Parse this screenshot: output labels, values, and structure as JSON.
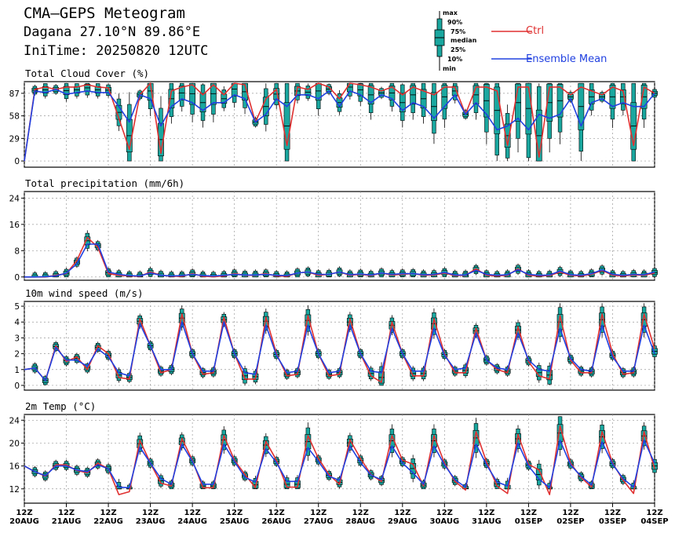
{
  "header": {
    "title": "CMA—GEPS Meteogram",
    "location": "Dagana 27.10°N 89.86°E",
    "init": "IniTime: 20250820 12UTC"
  },
  "legend": {
    "box_labels": [
      "max",
      "90%",
      "75%",
      "median",
      "25%",
      "10%",
      "min"
    ],
    "ctrl_label": "Ctrl",
    "mean_label": "Ensemble Mean",
    "ctrl_color": "#e03030",
    "mean_color": "#2040e0",
    "box_color": "#1aa7a0"
  },
  "chart_data": [
    {
      "type": "line",
      "title": "Total Cloud Cover (%)",
      "yticks": [
        0,
        29,
        58,
        87
      ],
      "ylim": [
        -8,
        102
      ],
      "x": [
        "20AUG12",
        "20AUG18",
        "21AUG00",
        "21AUG06",
        "21AUG12",
        "21AUG18",
        "22AUG00",
        "22AUG06",
        "22AUG12",
        "22AUG18",
        "23AUG00",
        "23AUG06",
        "23AUG12",
        "23AUG18",
        "24AUG00",
        "24AUG06",
        "24AUG12",
        "24AUG18",
        "25AUG00",
        "25AUG06",
        "25AUG12",
        "25AUG18",
        "26AUG00",
        "26AUG06",
        "26AUG12",
        "26AUG18",
        "27AUG00",
        "27AUG06",
        "27AUG12",
        "27AUG18",
        "28AUG00",
        "28AUG06",
        "28AUG12",
        "28AUG18",
        "29AUG00",
        "29AUG06",
        "29AUG12",
        "29AUG18",
        "30AUG00",
        "30AUG06",
        "30AUG12",
        "30AUG18",
        "31AUG00",
        "31AUG06",
        "31AUG12",
        "31AUG18",
        "01SEP00",
        "01SEP06",
        "01SEP12",
        "01SEP18",
        "02SEP00",
        "02SEP06",
        "02SEP12",
        "02SEP18",
        "03SEP00",
        "03SEP06",
        "03SEP12",
        "03SEP18",
        "04SEP00",
        "04SEP06",
        "04SEP12"
      ],
      "series": [
        {
          "name": "Ctrl",
          "values": [
            0,
            92,
            95,
            92,
            95,
            95,
            98,
            95,
            94,
            55,
            15,
            85,
            100,
            10,
            90,
            95,
            98,
            85,
            98,
            85,
            100,
            98,
            50,
            80,
            92,
            20,
            95,
            92,
            100,
            95,
            80,
            100,
            98,
            95,
            90,
            95,
            85,
            95,
            90,
            85,
            95,
            95,
            60,
            95,
            95,
            90,
            20,
            95,
            95,
            5,
            95,
            95,
            85,
            95,
            90,
            85,
            95,
            90,
            20,
            95,
            87
          ]
        },
        {
          "name": "Ensemble Mean",
          "values": [
            0,
            90,
            88,
            92,
            86,
            88,
            90,
            88,
            88,
            70,
            50,
            85,
            80,
            45,
            70,
            80,
            75,
            65,
            75,
            75,
            85,
            80,
            50,
            60,
            80,
            70,
            85,
            85,
            80,
            90,
            70,
            90,
            85,
            75,
            85,
            80,
            65,
            75,
            70,
            55,
            70,
            85,
            60,
            75,
            60,
            40,
            45,
            55,
            40,
            60,
            55,
            60,
            80,
            45,
            75,
            80,
            70,
            75,
            70,
            70,
            87
          ]
        }
      ]
    },
    {
      "type": "line",
      "title": "Total precipitation (mm/6h)",
      "yticks": [
        0,
        8,
        16,
        24
      ],
      "ylim": [
        -1,
        26
      ],
      "series": [
        {
          "name": "Ctrl",
          "values": [
            0,
            0,
            0,
            0.5,
            1,
            5,
            12,
            9,
            1,
            0.5,
            0.3,
            0.2,
            1.5,
            0.5,
            0.2,
            0.2,
            1,
            0.2,
            0.1,
            0.3,
            1,
            0.5,
            0.5,
            1,
            0.3,
            0.2,
            1.2,
            1.5,
            0.5,
            0.8,
            1.5,
            0.5,
            0.8,
            0.4,
            1.2,
            0.6,
            0.8,
            1,
            0.5,
            0.6,
            1.2,
            0.4,
            0.5,
            2.5,
            0.5,
            0.3,
            0.5,
            2.5,
            0.5,
            0.3,
            0.4,
            1.5,
            0.5,
            0.3,
            0.8,
            2,
            0.5,
            0.3,
            0.6,
            0.5,
            1.2
          ]
        },
        {
          "name": "Ensemble Mean",
          "values": [
            0,
            0,
            0.1,
            0.3,
            1.2,
            4,
            10,
            10,
            1.5,
            0.8,
            0.4,
            0.3,
            1.2,
            0.5,
            0.3,
            0.4,
            0.8,
            0.4,
            0.3,
            0.5,
            0.8,
            0.6,
            0.6,
            0.8,
            0.5,
            0.4,
            1.2,
            1.5,
            0.8,
            0.8,
            1.5,
            0.7,
            0.9,
            0.6,
            1.2,
            0.8,
            1,
            1,
            0.7,
            0.8,
            1.4,
            0.6,
            0.6,
            2,
            0.8,
            0.5,
            0.7,
            2.2,
            0.8,
            0.5,
            0.6,
            1.8,
            0.7,
            0.5,
            1,
            2.2,
            0.8,
            0.5,
            0.8,
            0.7,
            1.5
          ]
        }
      ]
    },
    {
      "type": "line",
      "title": "10m wind speed (m/s)",
      "yticks": [
        0,
        1,
        2,
        3,
        4,
        5
      ],
      "ylim": [
        -0.3,
        5.3
      ],
      "series": [
        {
          "name": "Ctrl",
          "values": [
            1,
            1.1,
            0.3,
            2.5,
            1.5,
            1.8,
            1,
            2.5,
            2,
            0.5,
            0.4,
            4.2,
            2.5,
            0.8,
            1,
            4.5,
            2,
            0.7,
            0.8,
            4.3,
            2,
            0.4,
            0.4,
            4.3,
            2,
            0.6,
            0.7,
            4.4,
            2,
            0.6,
            0.7,
            4.2,
            2,
            0.6,
            0.2,
            4,
            2,
            0.6,
            0.6,
            4.2,
            2,
            0.8,
            0.8,
            3.6,
            1.6,
            1,
            0.8,
            3.7,
            1.5,
            0.6,
            0.4,
            4.4,
            1.6,
            0.8,
            0.8,
            4.5,
            2,
            0.7,
            0.8,
            4.5,
            2.3
          ]
        },
        {
          "name": "Ensemble Mean",
          "values": [
            1,
            1.1,
            0.3,
            2.4,
            1.6,
            1.6,
            1.2,
            2.3,
            1.8,
            0.8,
            0.6,
            3.9,
            2.5,
            1,
            1,
            4,
            2,
            0.9,
            0.9,
            4,
            2,
            0.8,
            0.7,
            3.8,
            1.9,
            0.8,
            0.9,
            3.8,
            2,
            0.8,
            0.9,
            3.8,
            2,
            0.9,
            0.8,
            3.6,
            2,
            0.9,
            0.9,
            3.6,
            1.9,
            1,
            1.1,
            3.3,
            1.6,
            1.1,
            1,
            3.3,
            1.6,
            1,
            0.9,
            3.6,
            1.7,
            1,
            0.9,
            3.8,
            1.8,
            0.9,
            0.9,
            3.8,
            2
          ]
        }
      ]
    },
    {
      "type": "line",
      "title": "2m Temp (°C)",
      "yticks": [
        12,
        16,
        20,
        24
      ],
      "ylim": [
        9.5,
        25
      ],
      "series": [
        {
          "name": "Ctrl",
          "values": [
            16,
            15,
            14.2,
            16.2,
            16.2,
            15.2,
            14.8,
            16.5,
            15.5,
            11,
            11.5,
            20.5,
            16.5,
            13,
            12.5,
            20.8,
            17,
            12.2,
            12.2,
            21.3,
            17,
            14.5,
            12.2,
            20.3,
            17,
            12.3,
            12.3,
            21.3,
            17.3,
            14.5,
            12.8,
            20.6,
            17.3,
            14.5,
            13.3,
            21.3,
            17,
            16.3,
            12.5,
            21.3,
            16.5,
            13.3,
            11.8,
            22,
            16.7,
            12.5,
            11.2,
            21.5,
            16.3,
            15.3,
            11,
            23,
            16.5,
            14,
            12.3,
            22,
            16.5,
            13.5,
            11.2,
            22,
            15.5
          ]
        },
        {
          "name": "Ensemble Mean",
          "values": [
            16,
            15,
            14.3,
            16,
            16,
            15.3,
            15,
            16.2,
            15.5,
            12.3,
            12.2,
            19.3,
            16.5,
            13.8,
            12.8,
            19.8,
            16.8,
            12.8,
            12.8,
            19.8,
            16.8,
            14,
            13.2,
            19,
            16.6,
            13.3,
            13.3,
            19.2,
            16.8,
            14.2,
            13.5,
            19.5,
            16.6,
            14.4,
            13.6,
            19.5,
            16.5,
            14.8,
            12.8,
            19.5,
            16.2,
            13.6,
            12.3,
            19.8,
            16.2,
            13.2,
            12.5,
            20,
            16,
            13.7,
            12.2,
            20.5,
            16.2,
            14.2,
            12.7,
            20.2,
            16.3,
            13.8,
            12.3,
            20.5,
            16.5
          ]
        }
      ]
    }
  ],
  "xaxis": {
    "hour_label": "12Z",
    "day_labels": [
      "20AUG",
      "21AUG",
      "22AUG",
      "23AUG",
      "24AUG",
      "25AUG",
      "26AUG",
      "27AUG",
      "28AUG",
      "29AUG",
      "30AUG",
      "31AUG",
      "01SEP",
      "02SEP",
      "03SEP",
      "04SEP"
    ]
  }
}
